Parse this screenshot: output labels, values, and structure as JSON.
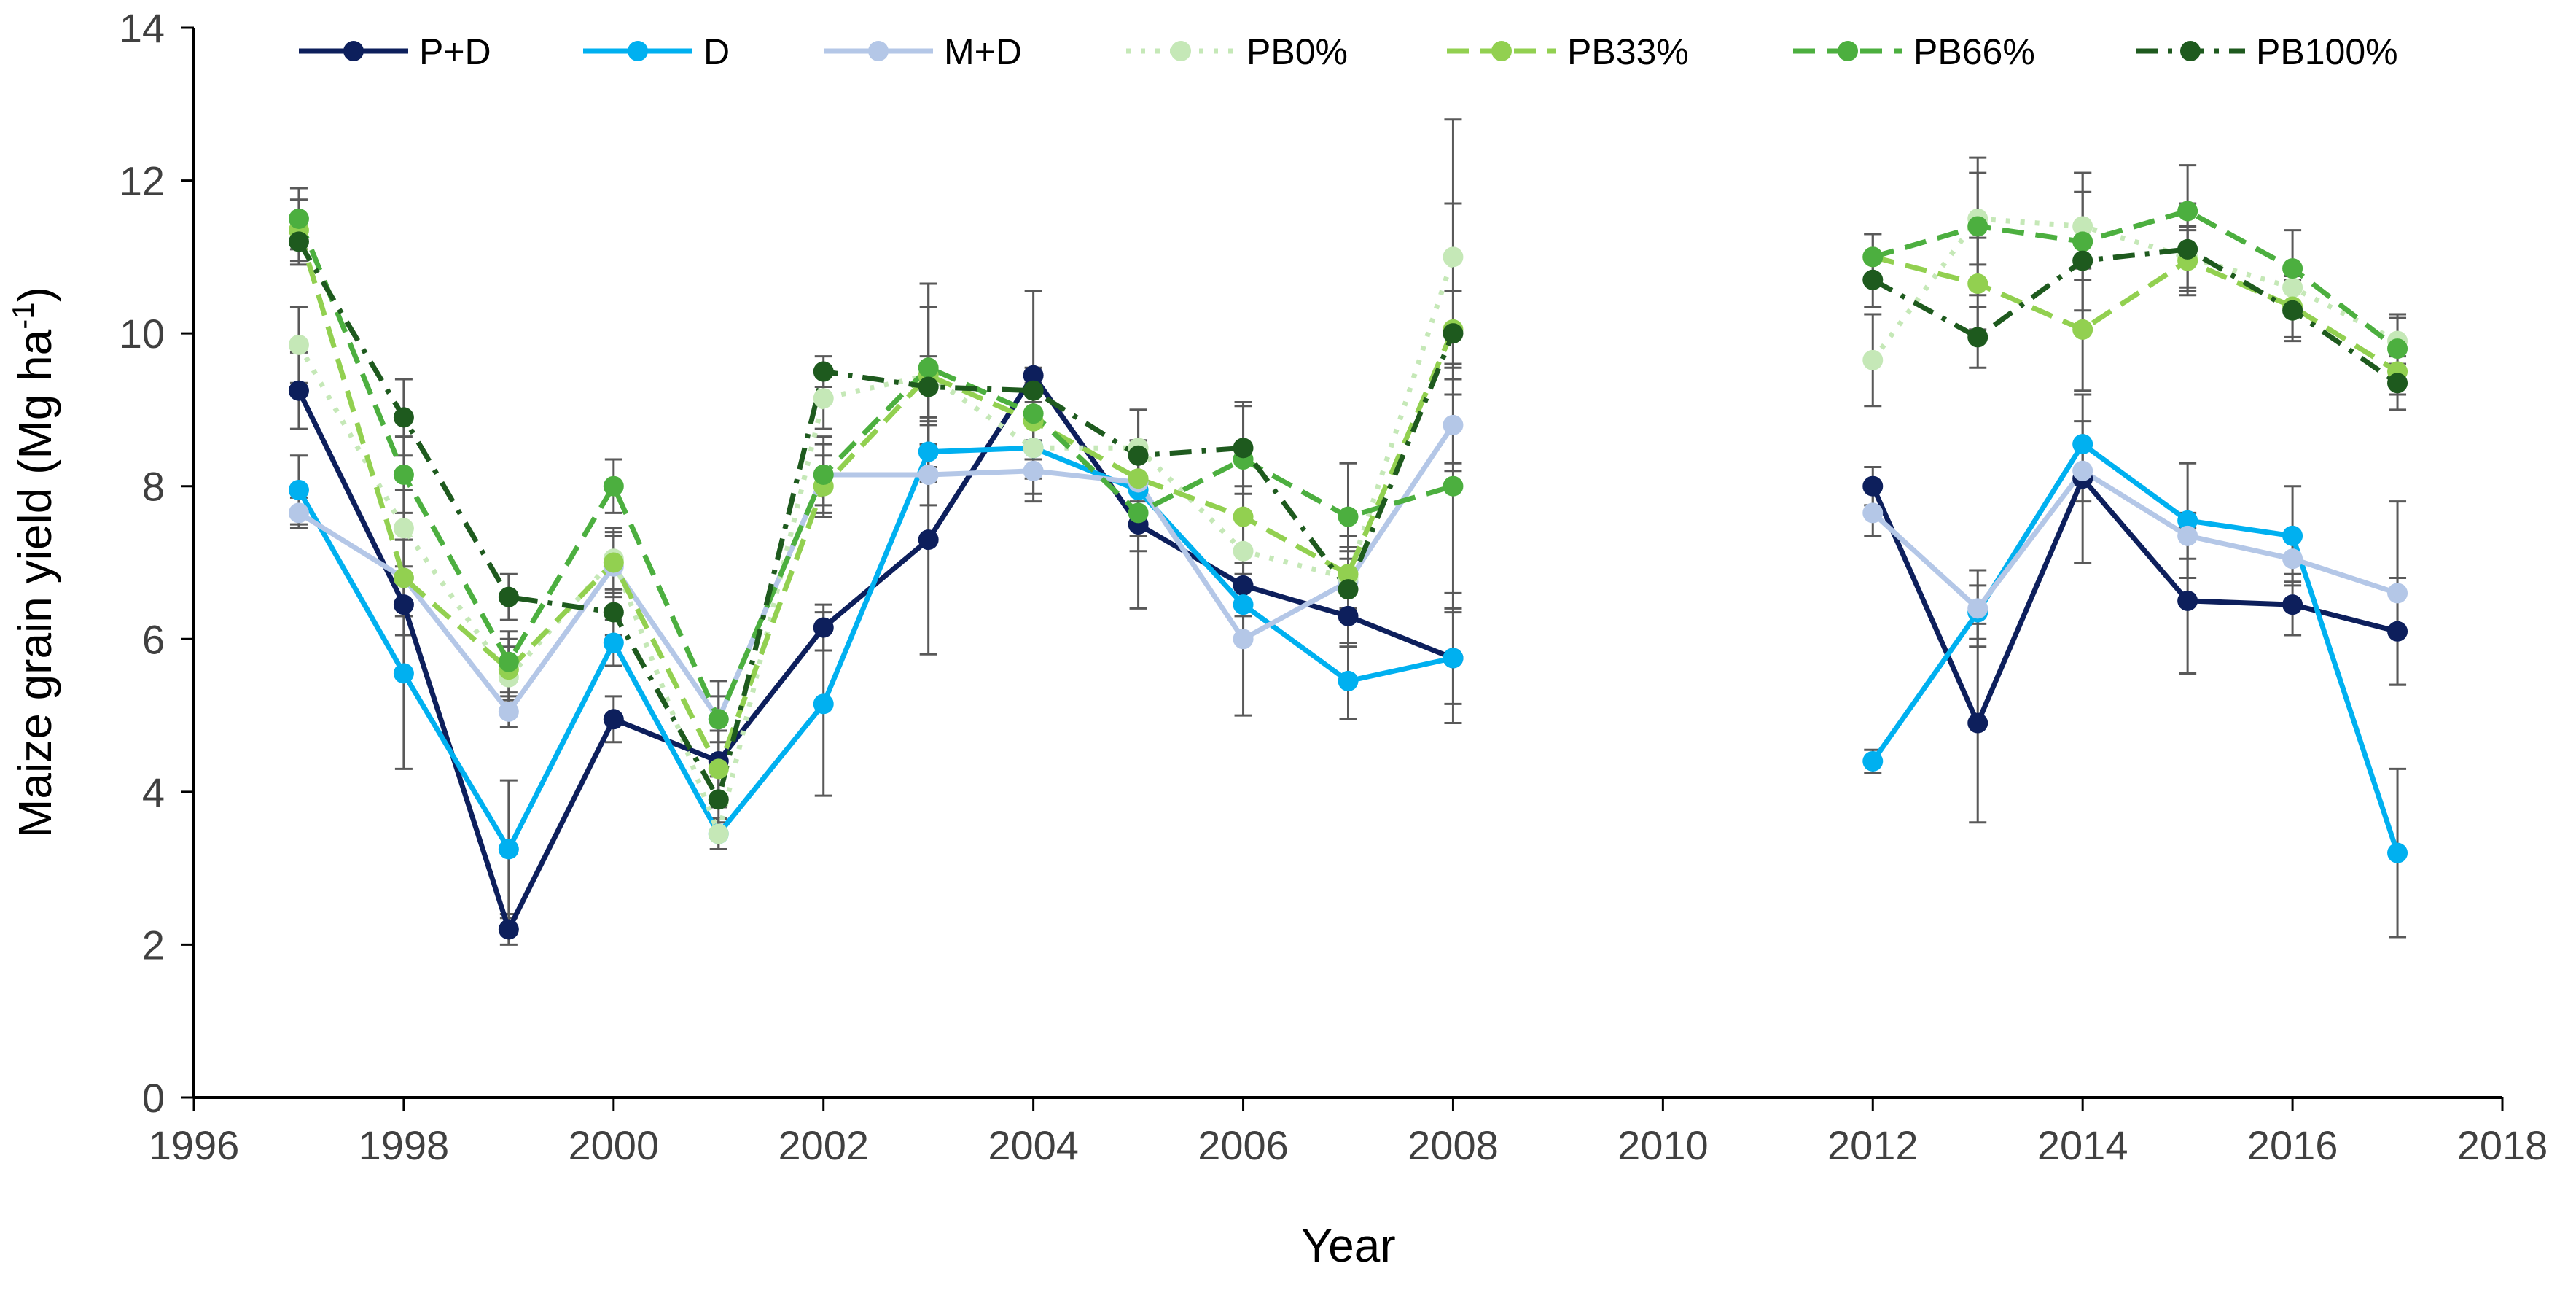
{
  "chart_data": {
    "type": "line",
    "title": "",
    "xlabel": "Year",
    "ylabel_main": "Maize grain yield (Mg ha",
    "ylabel_sup": "-1",
    "ylabel_tail": ")",
    "xlim": [
      1996,
      2018
    ],
    "ylim": [
      0,
      14
    ],
    "x_ticks": [
      1996,
      1998,
      2000,
      2002,
      2004,
      2006,
      2008,
      2010,
      2012,
      2014,
      2016,
      2018
    ],
    "x_tick_labels": [
      "1996",
      "1998",
      "2000",
      "2002",
      "2004",
      "2006",
      "2008",
      "2010",
      "2012",
      "2014",
      "2016",
      "2018"
    ],
    "y_ticks": [
      0,
      2,
      4,
      6,
      8,
      10,
      12,
      14
    ],
    "y_tick_labels": [
      "0",
      "2",
      "4",
      "6",
      "8",
      "10",
      "12",
      "14"
    ],
    "grid": false,
    "legend_position": "top",
    "segments": [
      [
        1997,
        2008
      ],
      [
        2012,
        2017
      ]
    ],
    "series": [
      {
        "name": "P+D",
        "color": "#0d1f5c",
        "dash": "solid",
        "marker": "circle",
        "x": [
          1997,
          1998,
          1999,
          2000,
          2001,
          2002,
          2003,
          2004,
          2005,
          2006,
          2007,
          2008,
          2012,
          2013,
          2014,
          2015,
          2016,
          2017
        ],
        "values": [
          9.25,
          6.45,
          2.2,
          4.95,
          4.4,
          6.15,
          7.3,
          9.45,
          7.5,
          6.7,
          6.3,
          5.75,
          8.0,
          4.9,
          8.1,
          6.5,
          6.45,
          6.1
        ],
        "errors": [
          0.5,
          0.4,
          0.2,
          0.3,
          0.6,
          0.3,
          1.5,
          1.1,
          1.1,
          0.4,
          0.4,
          0.6,
          0.25,
          1.3,
          1.1,
          0.95,
          0.4,
          0.7
        ]
      },
      {
        "name": "D",
        "color": "#00b0f0",
        "dash": "solid",
        "marker": "circle",
        "x": [
          1997,
          1998,
          1999,
          2000,
          2001,
          2002,
          2003,
          2004,
          2005,
          2006,
          2007,
          2008,
          2012,
          2013,
          2014,
          2015,
          2016,
          2017
        ],
        "values": [
          7.95,
          5.55,
          3.25,
          5.95,
          3.45,
          5.15,
          8.45,
          8.5,
          7.95,
          6.45,
          5.45,
          5.75,
          4.4,
          6.35,
          8.55,
          7.55,
          7.35,
          3.2
        ],
        "errors": [
          0.45,
          1.25,
          0.9,
          0.3,
          0.2,
          1.2,
          0.4,
          0.4,
          0.6,
          0.4,
          0.5,
          0.85,
          0.15,
          0.35,
          0.3,
          0.75,
          0.65,
          1.1
        ]
      },
      {
        "name": "M+D",
        "color": "#b4c7e7",
        "dash": "solid",
        "marker": "circle",
        "x": [
          1997,
          1998,
          1999,
          2000,
          2001,
          2002,
          2003,
          2004,
          2005,
          2006,
          2007,
          2008,
          2012,
          2013,
          2014,
          2015,
          2016,
          2017
        ],
        "values": [
          7.65,
          6.8,
          5.05,
          6.95,
          4.95,
          8.15,
          8.15,
          8.2,
          8.05,
          6.0,
          6.75,
          8.8,
          7.65,
          6.4,
          8.2,
          7.35,
          7.05,
          6.6
        ],
        "errors": [
          0.2,
          0.5,
          0.2,
          0.4,
          0.3,
          0.4,
          0.4,
          0.4,
          0.4,
          1.0,
          0.4,
          0.6,
          0.3,
          0.5,
          0.4,
          0.3,
          0.3,
          1.2
        ]
      },
      {
        "name": "PB0%",
        "color": "#c5e8b7",
        "dash": "dotted",
        "marker": "circle",
        "x": [
          1997,
          1998,
          1999,
          2000,
          2001,
          2002,
          2003,
          2004,
          2005,
          2006,
          2007,
          2008,
          2012,
          2013,
          2014,
          2015,
          2016,
          2017
        ],
        "values": [
          9.85,
          7.45,
          5.5,
          7.05,
          3.45,
          9.15,
          9.45,
          8.5,
          8.5,
          7.15,
          6.8,
          11.0,
          9.65,
          11.5,
          11.4,
          11.0,
          10.6,
          9.9
        ],
        "errors": [
          0.5,
          0.5,
          0.4,
          0.4,
          0.2,
          0.4,
          1.2,
          0.6,
          0.5,
          0.4,
          0.4,
          1.8,
          0.6,
          0.6,
          0.7,
          0.4,
          0.3,
          0.3
        ]
      },
      {
        "name": "PB33%",
        "color": "#92d050",
        "dash": "dashed",
        "marker": "circle",
        "x": [
          1997,
          1998,
          1999,
          2000,
          2001,
          2002,
          2003,
          2004,
          2005,
          2006,
          2007,
          2008,
          2012,
          2013,
          2014,
          2015,
          2016,
          2017
        ],
        "values": [
          11.35,
          6.8,
          5.6,
          7.0,
          4.3,
          8.0,
          9.45,
          8.85,
          8.1,
          7.6,
          6.85,
          10.05,
          11.0,
          10.65,
          10.05,
          10.95,
          10.35,
          9.5
        ],
        "errors": [
          0.4,
          0.5,
          0.4,
          0.4,
          0.5,
          0.4,
          0.9,
          0.5,
          0.5,
          0.4,
          0.5,
          0.5,
          0.3,
          0.6,
          0.8,
          0.4,
          0.4,
          0.3
        ]
      },
      {
        "name": "PB66%",
        "color": "#4caf3f",
        "dash": "dashed",
        "marker": "circle",
        "x": [
          1997,
          1998,
          1999,
          2000,
          2001,
          2002,
          2003,
          2004,
          2005,
          2006,
          2007,
          2008,
          2012,
          2013,
          2014,
          2015,
          2016,
          2017
        ],
        "values": [
          11.5,
          8.15,
          5.7,
          8.0,
          4.95,
          8.15,
          9.55,
          8.95,
          7.65,
          8.35,
          7.6,
          8.0,
          11.0,
          11.4,
          11.2,
          11.6,
          10.85,
          9.8
        ],
        "errors": [
          0.4,
          0.5,
          0.4,
          0.35,
          0.5,
          0.5,
          1.1,
          0.5,
          0.5,
          0.7,
          0.7,
          1.6,
          0.3,
          0.9,
          0.9,
          0.6,
          0.5,
          0.45
        ]
      },
      {
        "name": "PB100%",
        "color": "#1e5a1e",
        "dash": "dashdot",
        "marker": "circle",
        "x": [
          1997,
          1998,
          1999,
          2000,
          2001,
          2002,
          2003,
          2004,
          2005,
          2006,
          2007,
          2008,
          2012,
          2013,
          2014,
          2015,
          2016,
          2017
        ],
        "values": [
          11.2,
          8.9,
          6.55,
          6.35,
          3.9,
          9.5,
          9.3,
          9.25,
          8.4,
          8.5,
          6.65,
          10.0,
          10.7,
          9.95,
          10.95,
          11.1,
          10.3,
          9.35
        ],
        "errors": [
          0.3,
          0.5,
          0.3,
          0.3,
          0.3,
          0.2,
          0.4,
          0.3,
          0.6,
          0.6,
          0.4,
          1.7,
          0.35,
          0.4,
          0.9,
          0.6,
          0.4,
          0.35
        ]
      }
    ]
  }
}
